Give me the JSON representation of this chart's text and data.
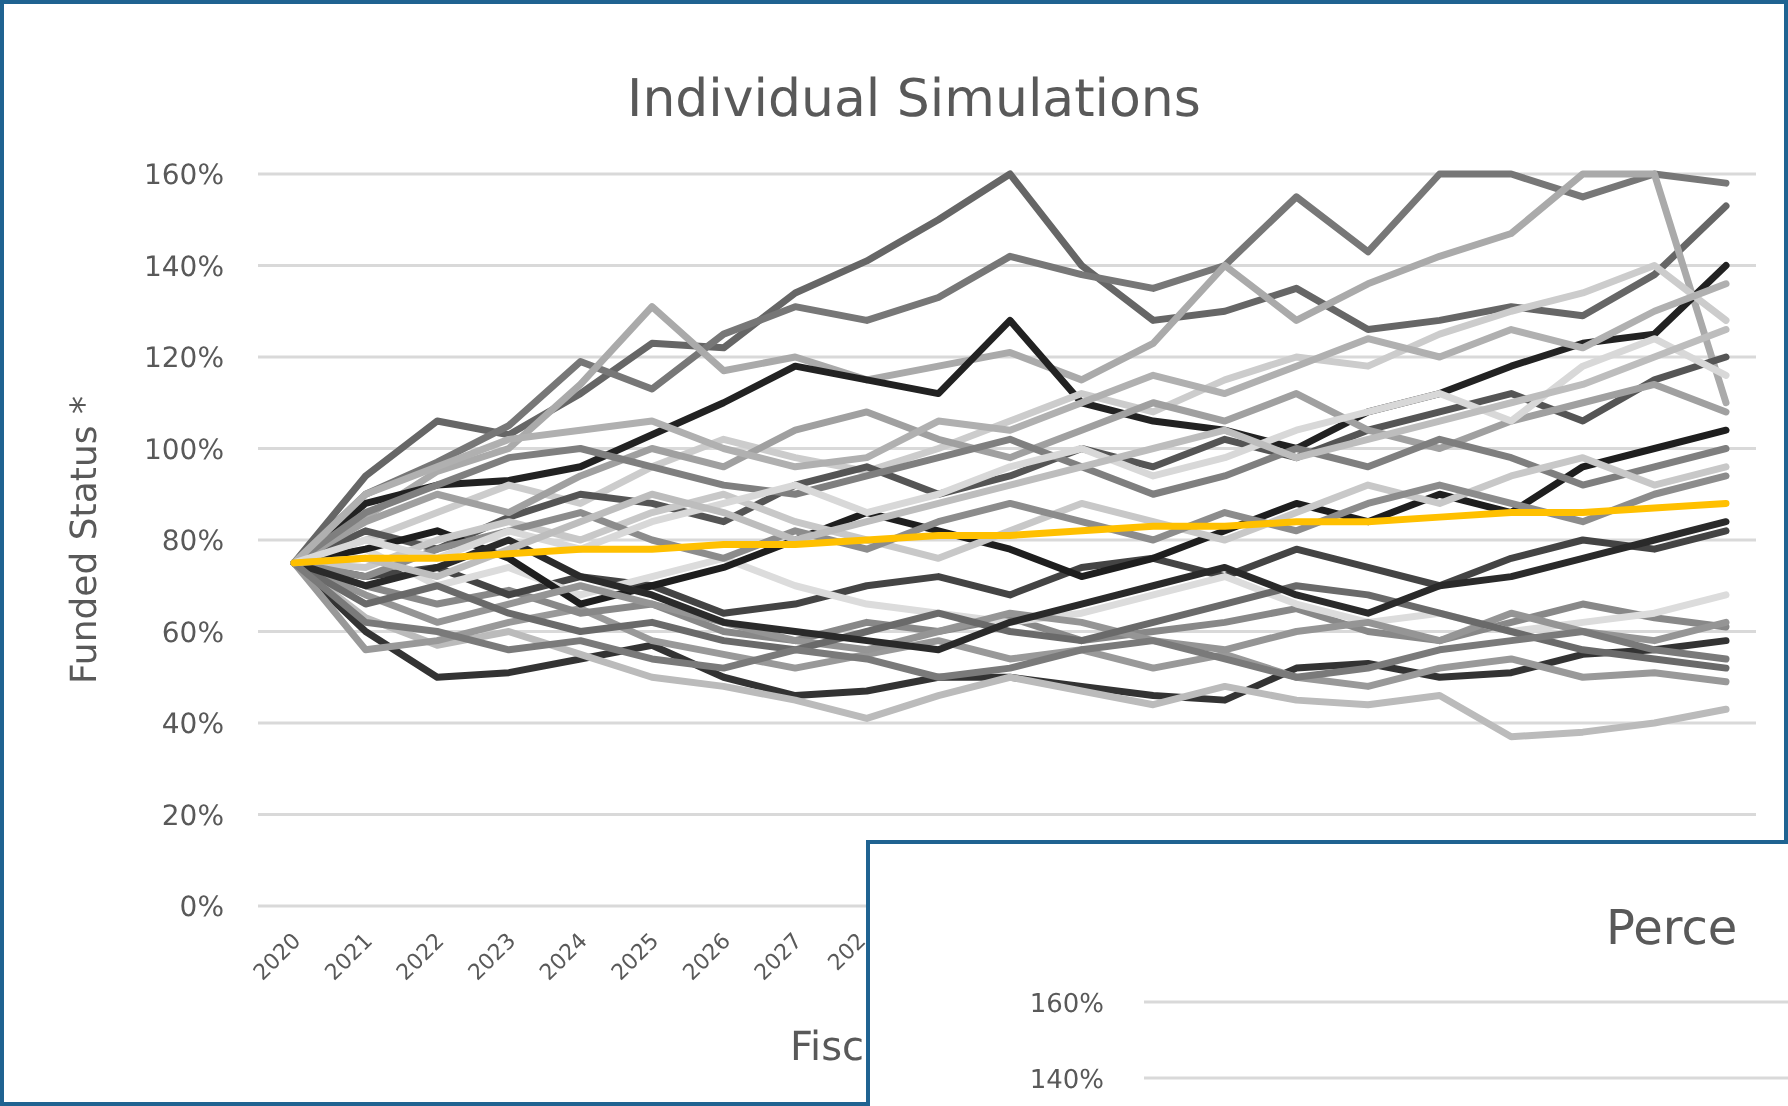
{
  "chart_data": [
    {
      "type": "line",
      "title": "Individual Simulations",
      "xlabel": "Fisc",
      "ylabel": "Funded Status *",
      "categories": [
        "2020",
        "2021",
        "2022",
        "2023",
        "2024",
        "2025",
        "2026",
        "2027",
        "202",
        null,
        null,
        null,
        null,
        null,
        null,
        null,
        null,
        null,
        null,
        null,
        null
      ],
      "ylim": [
        0,
        160
      ],
      "yticks": [
        {
          "value": 0,
          "label": "0%"
        },
        {
          "value": 20,
          "label": "20%"
        },
        {
          "value": 40,
          "label": "40%"
        },
        {
          "value": 60,
          "label": "60%"
        },
        {
          "value": 80,
          "label": "80%"
        },
        {
          "value": 100,
          "label": "100%"
        },
        {
          "value": 120,
          "label": "120%"
        },
        {
          "value": 140,
          "label": "140%"
        },
        {
          "value": 160,
          "label": "160%"
        }
      ],
      "grid": "y",
      "marker": "none",
      "line_style": "solid",
      "series": [
        {
          "color": "#666666",
          "values": [
            75,
            94,
            106,
            103,
            112,
            123,
            122,
            134,
            141,
            150,
            160,
            140,
            128,
            130,
            135,
            126,
            128,
            131,
            129,
            138,
            153
          ]
        },
        {
          "color": "#777777",
          "values": [
            75,
            90,
            97,
            105,
            119,
            113,
            125,
            131,
            128,
            133,
            142,
            138,
            135,
            140,
            155,
            143,
            160,
            160,
            155,
            160,
            158
          ]
        },
        {
          "color": "#aaaaaa",
          "values": [
            75,
            85,
            95,
            100,
            114,
            131,
            117,
            120,
            115,
            118,
            121,
            115,
            123,
            140,
            128,
            136,
            142,
            147,
            160,
            160,
            110
          ]
        },
        {
          "color": "#222222",
          "values": [
            75,
            88,
            92,
            93,
            96,
            103,
            110,
            118,
            115,
            112,
            128,
            110,
            106,
            104,
            100,
            108,
            112,
            118,
            123,
            125,
            140
          ]
        },
        {
          "color": "#333333",
          "values": [
            75,
            60,
            50,
            51,
            54,
            57,
            50,
            46,
            47,
            50,
            50,
            48,
            46,
            45,
            52,
            53,
            50,
            51,
            55,
            56,
            58
          ]
        },
        {
          "color": "#bbbbbb",
          "values": [
            75,
            63,
            57,
            60,
            55,
            50,
            48,
            45,
            41,
            46,
            50,
            47,
            44,
            48,
            45,
            44,
            46,
            37,
            38,
            40,
            43
          ]
        },
        {
          "color": "#999999",
          "values": [
            75,
            56,
            58,
            62,
            65,
            58,
            55,
            52,
            55,
            58,
            54,
            56,
            52,
            55,
            50,
            48,
            52,
            54,
            50,
            51,
            49
          ]
        },
        {
          "color": "#888888",
          "values": [
            75,
            70,
            66,
            69,
            64,
            66,
            60,
            58,
            62,
            60,
            63,
            58,
            60,
            62,
            65,
            60,
            58,
            62,
            66,
            63,
            61
          ]
        },
        {
          "color": "#cccccc",
          "values": [
            75,
            80,
            86,
            92,
            88,
            96,
            102,
            98,
            95,
            100,
            106,
            112,
            108,
            115,
            120,
            118,
            125,
            130,
            134,
            140,
            128
          ]
        },
        {
          "color": "#555555",
          "values": [
            75,
            82,
            78,
            85,
            90,
            88,
            84,
            92,
            96,
            90,
            94,
            100,
            96,
            102,
            98,
            104,
            108,
            112,
            106,
            115,
            120
          ]
        },
        {
          "color": "#444444",
          "values": [
            75,
            72,
            74,
            68,
            72,
            70,
            64,
            66,
            70,
            72,
            68,
            74,
            76,
            72,
            78,
            74,
            70,
            76,
            80,
            78,
            82
          ]
        },
        {
          "color": "#dcdcdc",
          "values": [
            75,
            78,
            70,
            74,
            68,
            72,
            76,
            70,
            66,
            64,
            62,
            64,
            68,
            72,
            66,
            62,
            64,
            60,
            62,
            64,
            68
          ]
        },
        {
          "color": "#a0a0a0",
          "values": [
            75,
            84,
            90,
            86,
            94,
            100,
            96,
            104,
            108,
            102,
            98,
            104,
            110,
            106,
            112,
            104,
            100,
            106,
            110,
            114,
            108
          ]
        },
        {
          "color": "#1e1e1e",
          "values": [
            75,
            78,
            82,
            76,
            66,
            70,
            74,
            80,
            86,
            82,
            78,
            72,
            76,
            82,
            88,
            84,
            90,
            86,
            96,
            100,
            104
          ]
        },
        {
          "color": "#959595",
          "values": [
            75,
            68,
            62,
            66,
            70,
            66,
            62,
            58,
            56,
            60,
            64,
            62,
            58,
            56,
            60,
            62,
            58,
            64,
            60,
            58,
            62
          ]
        },
        {
          "color": "#7f7f7f",
          "values": [
            75,
            86,
            92,
            98,
            100,
            96,
            92,
            90,
            94,
            98,
            102,
            96,
            90,
            94,
            100,
            96,
            102,
            98,
            92,
            96,
            100
          ]
        },
        {
          "color": "#c8c8c8",
          "values": [
            75,
            74,
            80,
            84,
            80,
            86,
            90,
            84,
            80,
            76,
            82,
            88,
            84,
            80,
            86,
            92,
            88,
            94,
            98,
            92,
            96
          ]
        },
        {
          "color": "#6a6a6a",
          "values": [
            75,
            66,
            70,
            64,
            60,
            62,
            58,
            56,
            60,
            64,
            60,
            58,
            62,
            66,
            70,
            68,
            64,
            60,
            56,
            54,
            52
          ]
        },
        {
          "color": "#b0b0b0",
          "values": [
            75,
            90,
            96,
            102,
            104,
            106,
            100,
            96,
            98,
            106,
            104,
            110,
            116,
            112,
            118,
            124,
            120,
            126,
            122,
            130,
            136
          ]
        },
        {
          "color": "#8c8c8c",
          "values": [
            75,
            72,
            78,
            82,
            86,
            80,
            76,
            82,
            78,
            84,
            88,
            84,
            80,
            86,
            82,
            88,
            92,
            88,
            84,
            90,
            94
          ]
        },
        {
          "color": "#2a2a2a",
          "values": [
            75,
            70,
            74,
            80,
            72,
            68,
            62,
            60,
            58,
            56,
            62,
            66,
            70,
            74,
            68,
            64,
            70,
            72,
            76,
            80,
            84
          ]
        },
        {
          "color": "#d8d8d8",
          "values": [
            75,
            80,
            76,
            82,
            78,
            84,
            88,
            92,
            86,
            90,
            96,
            100,
            94,
            98,
            104,
            108,
            112,
            106,
            118,
            124,
            116
          ]
        },
        {
          "color": "#7a7a7a",
          "values": [
            75,
            62,
            60,
            56,
            58,
            54,
            52,
            56,
            54,
            50,
            52,
            56,
            58,
            54,
            50,
            52,
            56,
            58,
            60,
            56,
            54
          ]
        },
        {
          "color": "#bdbdbd",
          "values": [
            75,
            76,
            72,
            78,
            84,
            90,
            86,
            80,
            84,
            88,
            92,
            96,
            100,
            104,
            98,
            102,
            106,
            110,
            114,
            120,
            126
          ]
        },
        {
          "color": "#ffc000",
          "values": [
            75,
            76,
            76,
            77,
            78,
            78,
            79,
            79,
            80,
            81,
            81,
            82,
            83,
            83,
            84,
            84,
            85,
            86,
            86,
            87,
            88
          ]
        }
      ]
    },
    {
      "type": "other",
      "title": "Perce",
      "annotations": [
        "160%",
        "140%"
      ]
    }
  ]
}
